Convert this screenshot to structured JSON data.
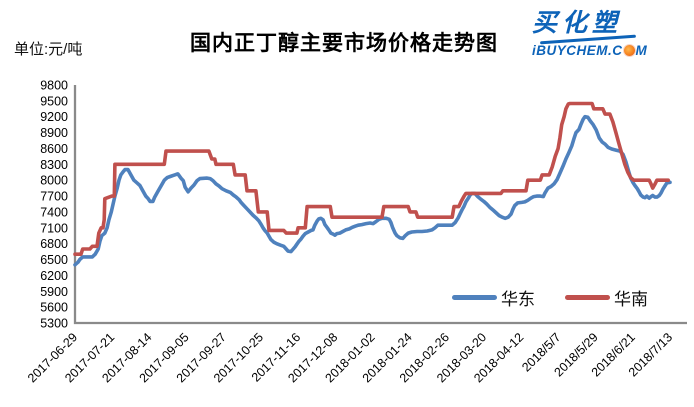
{
  "header": {
    "unit_label": "单位:元/吨",
    "title": "国内正丁醇主要市场价格走势图"
  },
  "logo": {
    "brand": "买化塑",
    "site_before_o": "iBUYCHEM.C",
    "site_after_o": "M",
    "brand_color": "#0d63b8",
    "sun_color": "#f58220"
  },
  "chart_data": {
    "type": "line",
    "title": "国内正丁醇主要市场价格走势图",
    "value_unit": "元/吨",
    "grid": false,
    "background": "#ffffff",
    "axis_color": "#8a8a8a",
    "legend_position": "inside-bottom-right",
    "ylim": [
      5300,
      9800
    ],
    "ytick_step": 300,
    "yticks": [
      9800,
      9500,
      9200,
      8900,
      8600,
      8300,
      8000,
      7700,
      7400,
      7100,
      6800,
      6500,
      6200,
      5900,
      5600,
      5300
    ],
    "categories": [
      "2017-06-29",
      "2017-07-21",
      "2017-08-14",
      "2017-09-05",
      "2017-09-27",
      "2017-10-25",
      "2017-11-16",
      "2017-12-08",
      "2018-01-02",
      "2018-01-24",
      "2018-02-26",
      "2018-03-20",
      "2018-04-12",
      "2018/5/7",
      "2018/5/29",
      "2018/6/21",
      "2018/7/13"
    ],
    "x_encoding": "each point x = fraction 0-1 along the date axis (0 = 2017-06-29, 1 = 2018/7/13); tick labels evenly spaced",
    "series": [
      {
        "name": "华东",
        "color": "#4F81BD",
        "points": [
          [
            0.0,
            6400
          ],
          [
            0.005,
            6450
          ],
          [
            0.008,
            6500
          ],
          [
            0.013,
            6550
          ],
          [
            0.029,
            6550
          ],
          [
            0.034,
            6600
          ],
          [
            0.039,
            6700
          ],
          [
            0.042,
            6850
          ],
          [
            0.045,
            6950
          ],
          [
            0.05,
            7000
          ],
          [
            0.054,
            7100
          ],
          [
            0.057,
            7250
          ],
          [
            0.061,
            7400
          ],
          [
            0.064,
            7550
          ],
          [
            0.067,
            7700
          ],
          [
            0.071,
            7850
          ],
          [
            0.074,
            8000
          ],
          [
            0.077,
            8100
          ],
          [
            0.081,
            8160
          ],
          [
            0.084,
            8200
          ],
          [
            0.089,
            8200
          ],
          [
            0.094,
            8100
          ],
          [
            0.099,
            8000
          ],
          [
            0.104,
            7950
          ],
          [
            0.109,
            7900
          ],
          [
            0.114,
            7800
          ],
          [
            0.119,
            7700
          ],
          [
            0.123,
            7650
          ],
          [
            0.126,
            7600
          ],
          [
            0.131,
            7600
          ],
          [
            0.134,
            7680
          ],
          [
            0.139,
            7780
          ],
          [
            0.145,
            7900
          ],
          [
            0.15,
            8000
          ],
          [
            0.155,
            8050
          ],
          [
            0.16,
            8070
          ],
          [
            0.165,
            8090
          ],
          [
            0.17,
            8110
          ],
          [
            0.173,
            8120
          ],
          [
            0.178,
            8040
          ],
          [
            0.182,
            7990
          ],
          [
            0.185,
            7870
          ],
          [
            0.19,
            7780
          ],
          [
            0.195,
            7850
          ],
          [
            0.2,
            7910
          ],
          [
            0.205,
            7990
          ],
          [
            0.21,
            8030
          ],
          [
            0.222,
            8040
          ],
          [
            0.227,
            8030
          ],
          [
            0.232,
            7990
          ],
          [
            0.237,
            7930
          ],
          [
            0.242,
            7890
          ],
          [
            0.247,
            7840
          ],
          [
            0.254,
            7800
          ],
          [
            0.261,
            7770
          ],
          [
            0.266,
            7720
          ],
          [
            0.271,
            7680
          ],
          [
            0.276,
            7630
          ],
          [
            0.279,
            7580
          ],
          [
            0.284,
            7520
          ],
          [
            0.289,
            7460
          ],
          [
            0.294,
            7400
          ],
          [
            0.299,
            7340
          ],
          [
            0.304,
            7290
          ],
          [
            0.309,
            7230
          ],
          [
            0.313,
            7160
          ],
          [
            0.316,
            7100
          ],
          [
            0.319,
            7050
          ],
          [
            0.323,
            7000
          ],
          [
            0.326,
            6940
          ],
          [
            0.329,
            6880
          ],
          [
            0.334,
            6830
          ],
          [
            0.339,
            6800
          ],
          [
            0.346,
            6770
          ],
          [
            0.351,
            6750
          ],
          [
            0.355,
            6700
          ],
          [
            0.358,
            6660
          ],
          [
            0.363,
            6650
          ],
          [
            0.366,
            6690
          ],
          [
            0.37,
            6740
          ],
          [
            0.373,
            6790
          ],
          [
            0.376,
            6840
          ],
          [
            0.38,
            6890
          ],
          [
            0.383,
            6940
          ],
          [
            0.387,
            6990
          ],
          [
            0.392,
            7020
          ],
          [
            0.397,
            7050
          ],
          [
            0.4,
            7060
          ],
          [
            0.403,
            7150
          ],
          [
            0.407,
            7230
          ],
          [
            0.41,
            7270
          ],
          [
            0.413,
            7280
          ],
          [
            0.417,
            7250
          ],
          [
            0.42,
            7160
          ],
          [
            0.424,
            7100
          ],
          [
            0.427,
            7050
          ],
          [
            0.43,
            7000
          ],
          [
            0.434,
            6980
          ],
          [
            0.437,
            6960
          ],
          [
            0.44,
            6990
          ],
          [
            0.445,
            7000
          ],
          [
            0.45,
            7030
          ],
          [
            0.455,
            7060
          ],
          [
            0.461,
            7080
          ],
          [
            0.466,
            7110
          ],
          [
            0.471,
            7130
          ],
          [
            0.476,
            7150
          ],
          [
            0.482,
            7160
          ],
          [
            0.489,
            7180
          ],
          [
            0.496,
            7190
          ],
          [
            0.501,
            7180
          ],
          [
            0.506,
            7220
          ],
          [
            0.511,
            7260
          ],
          [
            0.516,
            7280
          ],
          [
            0.523,
            7280
          ],
          [
            0.528,
            7260
          ],
          [
            0.531,
            7200
          ],
          [
            0.534,
            7100
          ],
          [
            0.538,
            7000
          ],
          [
            0.541,
            6950
          ],
          [
            0.546,
            6910
          ],
          [
            0.551,
            6900
          ],
          [
            0.555,
            6950
          ],
          [
            0.56,
            7000
          ],
          [
            0.566,
            7020
          ],
          [
            0.575,
            7030
          ],
          [
            0.583,
            7030
          ],
          [
            0.592,
            7040
          ],
          [
            0.6,
            7060
          ],
          [
            0.605,
            7100
          ],
          [
            0.61,
            7150
          ],
          [
            0.634,
            7150
          ],
          [
            0.639,
            7200
          ],
          [
            0.644,
            7290
          ],
          [
            0.647,
            7360
          ],
          [
            0.65,
            7430
          ],
          [
            0.654,
            7510
          ],
          [
            0.657,
            7590
          ],
          [
            0.661,
            7660
          ],
          [
            0.664,
            7720
          ],
          [
            0.667,
            7750
          ],
          [
            0.672,
            7750
          ],
          [
            0.677,
            7690
          ],
          [
            0.682,
            7640
          ],
          [
            0.687,
            7600
          ],
          [
            0.692,
            7550
          ],
          [
            0.697,
            7490
          ],
          [
            0.703,
            7430
          ],
          [
            0.708,
            7380
          ],
          [
            0.713,
            7330
          ],
          [
            0.718,
            7300
          ],
          [
            0.723,
            7280
          ],
          [
            0.728,
            7300
          ],
          [
            0.733,
            7360
          ],
          [
            0.736,
            7450
          ],
          [
            0.739,
            7520
          ],
          [
            0.744,
            7570
          ],
          [
            0.751,
            7580
          ],
          [
            0.756,
            7590
          ],
          [
            0.761,
            7620
          ],
          [
            0.766,
            7660
          ],
          [
            0.771,
            7690
          ],
          [
            0.776,
            7700
          ],
          [
            0.782,
            7700
          ],
          [
            0.787,
            7690
          ],
          [
            0.79,
            7760
          ],
          [
            0.795,
            7850
          ],
          [
            0.8,
            7880
          ],
          [
            0.805,
            7930
          ],
          [
            0.81,
            8010
          ],
          [
            0.815,
            8130
          ],
          [
            0.82,
            8260
          ],
          [
            0.825,
            8400
          ],
          [
            0.83,
            8520
          ],
          [
            0.835,
            8650
          ],
          [
            0.839,
            8800
          ],
          [
            0.842,
            8900
          ],
          [
            0.847,
            8960
          ],
          [
            0.85,
            9050
          ],
          [
            0.854,
            9150
          ],
          [
            0.857,
            9200
          ],
          [
            0.862,
            9190
          ],
          [
            0.866,
            9120
          ],
          [
            0.871,
            9050
          ],
          [
            0.876,
            8950
          ],
          [
            0.881,
            8800
          ],
          [
            0.886,
            8720
          ],
          [
            0.891,
            8680
          ],
          [
            0.896,
            8620
          ],
          [
            0.902,
            8590
          ],
          [
            0.909,
            8570
          ],
          [
            0.916,
            8550
          ],
          [
            0.921,
            8490
          ],
          [
            0.926,
            8340
          ],
          [
            0.931,
            8150
          ],
          [
            0.934,
            8040
          ],
          [
            0.938,
            7950
          ],
          [
            0.941,
            7900
          ],
          [
            0.945,
            7840
          ],
          [
            0.948,
            7780
          ],
          [
            0.951,
            7720
          ],
          [
            0.955,
            7680
          ],
          [
            0.958,
            7670
          ],
          [
            0.961,
            7700
          ],
          [
            0.965,
            7660
          ],
          [
            0.968,
            7690
          ],
          [
            0.971,
            7710
          ],
          [
            0.975,
            7680
          ],
          [
            0.978,
            7680
          ],
          [
            0.982,
            7710
          ],
          [
            0.985,
            7760
          ],
          [
            0.988,
            7830
          ],
          [
            0.992,
            7900
          ],
          [
            0.995,
            7950
          ],
          [
            1.0,
            7960
          ]
        ]
      },
      {
        "name": "华南",
        "color": "#C0504D",
        "points": [
          [
            0.0,
            6600
          ],
          [
            0.01,
            6600
          ],
          [
            0.013,
            6700
          ],
          [
            0.025,
            6700
          ],
          [
            0.029,
            6750
          ],
          [
            0.037,
            6750
          ],
          [
            0.04,
            7000
          ],
          [
            0.044,
            7100
          ],
          [
            0.047,
            7100
          ],
          [
            0.049,
            7250
          ],
          [
            0.05,
            7650
          ],
          [
            0.062,
            7700
          ],
          [
            0.066,
            7700
          ],
          [
            0.067,
            8300
          ],
          [
            0.15,
            8300
          ],
          [
            0.153,
            8550
          ],
          [
            0.225,
            8550
          ],
          [
            0.23,
            8400
          ],
          [
            0.235,
            8400
          ],
          [
            0.237,
            8300
          ],
          [
            0.266,
            8300
          ],
          [
            0.269,
            8100
          ],
          [
            0.286,
            8100
          ],
          [
            0.289,
            7800
          ],
          [
            0.304,
            7800
          ],
          [
            0.308,
            7400
          ],
          [
            0.323,
            7400
          ],
          [
            0.326,
            7050
          ],
          [
            0.351,
            7050
          ],
          [
            0.355,
            7000
          ],
          [
            0.373,
            7000
          ],
          [
            0.375,
            7100
          ],
          [
            0.387,
            7100
          ],
          [
            0.39,
            7500
          ],
          [
            0.429,
            7500
          ],
          [
            0.432,
            7300
          ],
          [
            0.516,
            7300
          ],
          [
            0.519,
            7500
          ],
          [
            0.56,
            7500
          ],
          [
            0.563,
            7400
          ],
          [
            0.573,
            7400
          ],
          [
            0.576,
            7300
          ],
          [
            0.634,
            7300
          ],
          [
            0.637,
            7500
          ],
          [
            0.645,
            7500
          ],
          [
            0.649,
            7600
          ],
          [
            0.654,
            7700
          ],
          [
            0.657,
            7750
          ],
          [
            0.716,
            7750
          ],
          [
            0.719,
            7800
          ],
          [
            0.758,
            7800
          ],
          [
            0.761,
            8000
          ],
          [
            0.782,
            8000
          ],
          [
            0.785,
            8100
          ],
          [
            0.797,
            8100
          ],
          [
            0.802,
            8250
          ],
          [
            0.807,
            8450
          ],
          [
            0.812,
            8600
          ],
          [
            0.815,
            8800
          ],
          [
            0.818,
            9050
          ],
          [
            0.822,
            9200
          ],
          [
            0.825,
            9350
          ],
          [
            0.829,
            9440
          ],
          [
            0.832,
            9450
          ],
          [
            0.869,
            9450
          ],
          [
            0.872,
            9350
          ],
          [
            0.887,
            9350
          ],
          [
            0.891,
            9250
          ],
          [
            0.899,
            9250
          ],
          [
            0.904,
            9100
          ],
          [
            0.909,
            8900
          ],
          [
            0.914,
            8700
          ],
          [
            0.919,
            8500
          ],
          [
            0.924,
            8300
          ],
          [
            0.929,
            8150
          ],
          [
            0.934,
            8050
          ],
          [
            0.939,
            8000
          ],
          [
            0.965,
            8000
          ],
          [
            0.968,
            7930
          ],
          [
            0.971,
            7850
          ],
          [
            0.975,
            7930
          ],
          [
            0.978,
            8000
          ],
          [
            0.997,
            8000
          ]
        ]
      }
    ]
  },
  "legend": {
    "items": [
      {
        "label": "华东"
      },
      {
        "label": "华南"
      }
    ]
  }
}
